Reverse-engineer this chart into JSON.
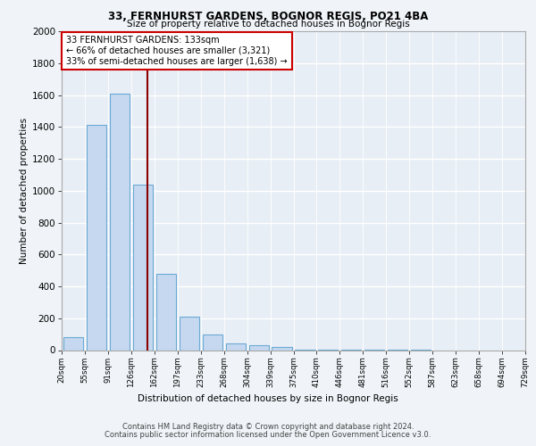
{
  "title1": "33, FERNHURST GARDENS, BOGNOR REGIS, PO21 4BA",
  "title2": "Size of property relative to detached houses in Bognor Regis",
  "xlabel": "Distribution of detached houses by size in Bognor Regis",
  "ylabel": "Number of detached properties",
  "bins": [
    "20sqm",
    "55sqm",
    "91sqm",
    "126sqm",
    "162sqm",
    "197sqm",
    "233sqm",
    "268sqm",
    "304sqm",
    "339sqm",
    "375sqm",
    "410sqm",
    "446sqm",
    "481sqm",
    "516sqm",
    "552sqm",
    "587sqm",
    "623sqm",
    "658sqm",
    "694sqm",
    "729sqm"
  ],
  "values": [
    80,
    1410,
    1610,
    1040,
    480,
    210,
    100,
    40,
    30,
    20,
    5,
    3,
    2,
    2,
    1,
    1,
    0,
    0,
    0,
    0
  ],
  "bar_color": "#c5d8f0",
  "bar_edge_color": "#6aaad4",
  "vline_color": "#8b0000",
  "annotation_text": "33 FERNHURST GARDENS: 133sqm\n← 66% of detached houses are smaller (3,321)\n33% of semi-detached houses are larger (1,638) →",
  "annotation_box_color": "#ffffff",
  "annotation_box_edge": "#cc0000",
  "ylim": [
    0,
    2000
  ],
  "yticks": [
    0,
    200,
    400,
    600,
    800,
    1000,
    1200,
    1400,
    1600,
    1800,
    2000
  ],
  "footnote1": "Contains HM Land Registry data © Crown copyright and database right 2024.",
  "footnote2": "Contains public sector information licensed under the Open Government Licence v3.0.",
  "bg_color": "#e8eef5",
  "grid_color": "#ffffff",
  "fig_bg_color": "#f0f4f8"
}
